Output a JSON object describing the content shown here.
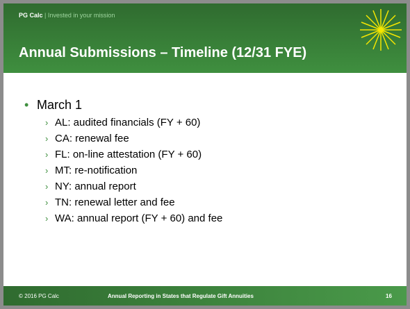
{
  "header": {
    "brand": "PG Calc",
    "separator": "|",
    "tagline": "Invested in your mission"
  },
  "title": "Annual Submissions – Timeline (12/31 FYE)",
  "bullets": [
    {
      "text": "March 1",
      "items": [
        "AL: audited financials (FY + 60)",
        "CA: renewal fee",
        "FL: on-line attestation (FY + 60)",
        "MT: re-notification",
        "NY: annual report",
        "TN: renewal letter and fee",
        "WA: annual report (FY + 60) and fee"
      ]
    }
  ],
  "footer": {
    "copyright": "© 2016 PG Calc",
    "title": "Annual Reporting in States that Regulate Gift Annuities",
    "page": "16"
  }
}
